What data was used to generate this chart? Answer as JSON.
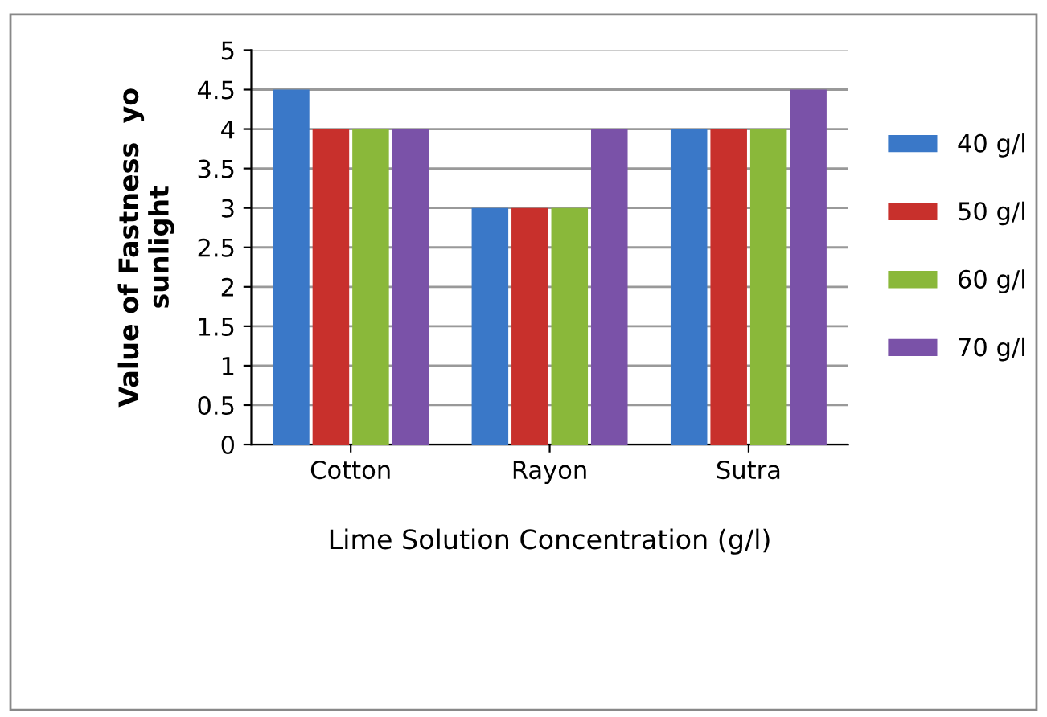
{
  "chart_data": {
    "type": "bar",
    "xlabel": "Lime Solution Concentration (g/l)",
    "ylabel": "Value of Fastness  yo\nsunlight",
    "categories": [
      "Cotton",
      "Rayon",
      "Sutra"
    ],
    "series": [
      {
        "name": "40 g/l",
        "color": "#3a78c8",
        "values": [
          4.5,
          3,
          4
        ]
      },
      {
        "name": "50 g/l",
        "color": "#c8302c",
        "values": [
          4,
          3,
          4
        ]
      },
      {
        "name": "60 g/l",
        "color": "#8ab83a",
        "values": [
          4,
          3,
          4
        ]
      },
      {
        "name": "70 g/l",
        "color": "#7a52a8",
        "values": [
          4,
          4,
          4.5
        ]
      }
    ],
    "ylim": [
      0,
      5
    ],
    "yticks": [
      0,
      0.5,
      1,
      1.5,
      2,
      2.5,
      3,
      3.5,
      4,
      4.5,
      5
    ],
    "grid": "y",
    "legend": "right"
  }
}
